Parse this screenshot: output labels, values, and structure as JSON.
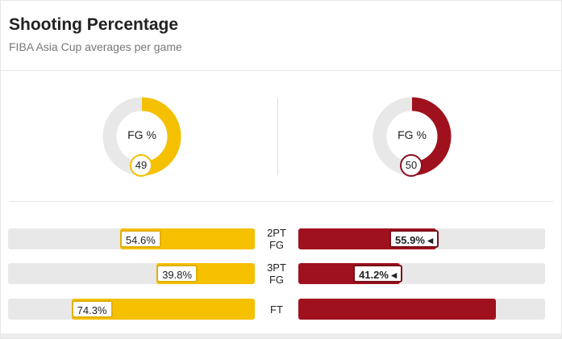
{
  "header": {
    "title": "Shooting Percentage",
    "subtitle": "FIBA Asia Cup averages per game"
  },
  "colors": {
    "team1": "#F5C000",
    "team2": "#A0111E",
    "track": "#E8E8E8"
  },
  "chart_data": [
    {
      "type": "pie",
      "title": "FG %",
      "series": [
        {
          "name": "team1",
          "label": "FG %",
          "value": 49,
          "max": 100
        },
        {
          "name": "team2",
          "label": "FG %",
          "value": 50,
          "max": 100
        }
      ]
    },
    {
      "type": "bar",
      "categories": [
        "2PT FG",
        "3PT FG",
        "FT"
      ],
      "xlim": [
        0,
        100
      ],
      "series": [
        {
          "name": "team1",
          "values": [
            54.6,
            39.8,
            74.3
          ],
          "labels": [
            "54.6%",
            "39.8%",
            "74.3%"
          ]
        },
        {
          "name": "team2",
          "values": [
            55.9,
            41.2,
            null
          ],
          "labels": [
            "55.9%",
            "41.2%",
            null
          ]
        }
      ]
    }
  ]
}
